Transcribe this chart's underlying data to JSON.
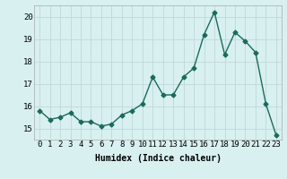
{
  "x": [
    0,
    1,
    2,
    3,
    4,
    5,
    6,
    7,
    8,
    9,
    10,
    11,
    12,
    13,
    14,
    15,
    16,
    17,
    18,
    19,
    20,
    21,
    22,
    23
  ],
  "y": [
    15.8,
    15.4,
    15.5,
    15.7,
    15.3,
    15.3,
    15.1,
    15.2,
    15.6,
    15.8,
    16.1,
    17.3,
    16.5,
    16.5,
    17.3,
    17.7,
    19.2,
    20.2,
    18.3,
    19.3,
    18.9,
    18.4,
    16.1,
    14.7
  ],
  "line_color": "#1a6b5a",
  "marker": "D",
  "markersize": 2.5,
  "linewidth": 1.0,
  "bg_color": "#d8f0f0",
  "grid_color": "#c0d8d8",
  "xlabel": "Humidex (Indice chaleur)",
  "xlim": [
    -0.5,
    23.5
  ],
  "ylim": [
    14.5,
    20.5
  ],
  "yticks": [
    15,
    16,
    17,
    18,
    19,
    20
  ],
  "xticks": [
    0,
    1,
    2,
    3,
    4,
    5,
    6,
    7,
    8,
    9,
    10,
    11,
    12,
    13,
    14,
    15,
    16,
    17,
    18,
    19,
    20,
    21,
    22,
    23
  ],
  "xlabel_fontsize": 7,
  "tick_fontsize": 6.5
}
